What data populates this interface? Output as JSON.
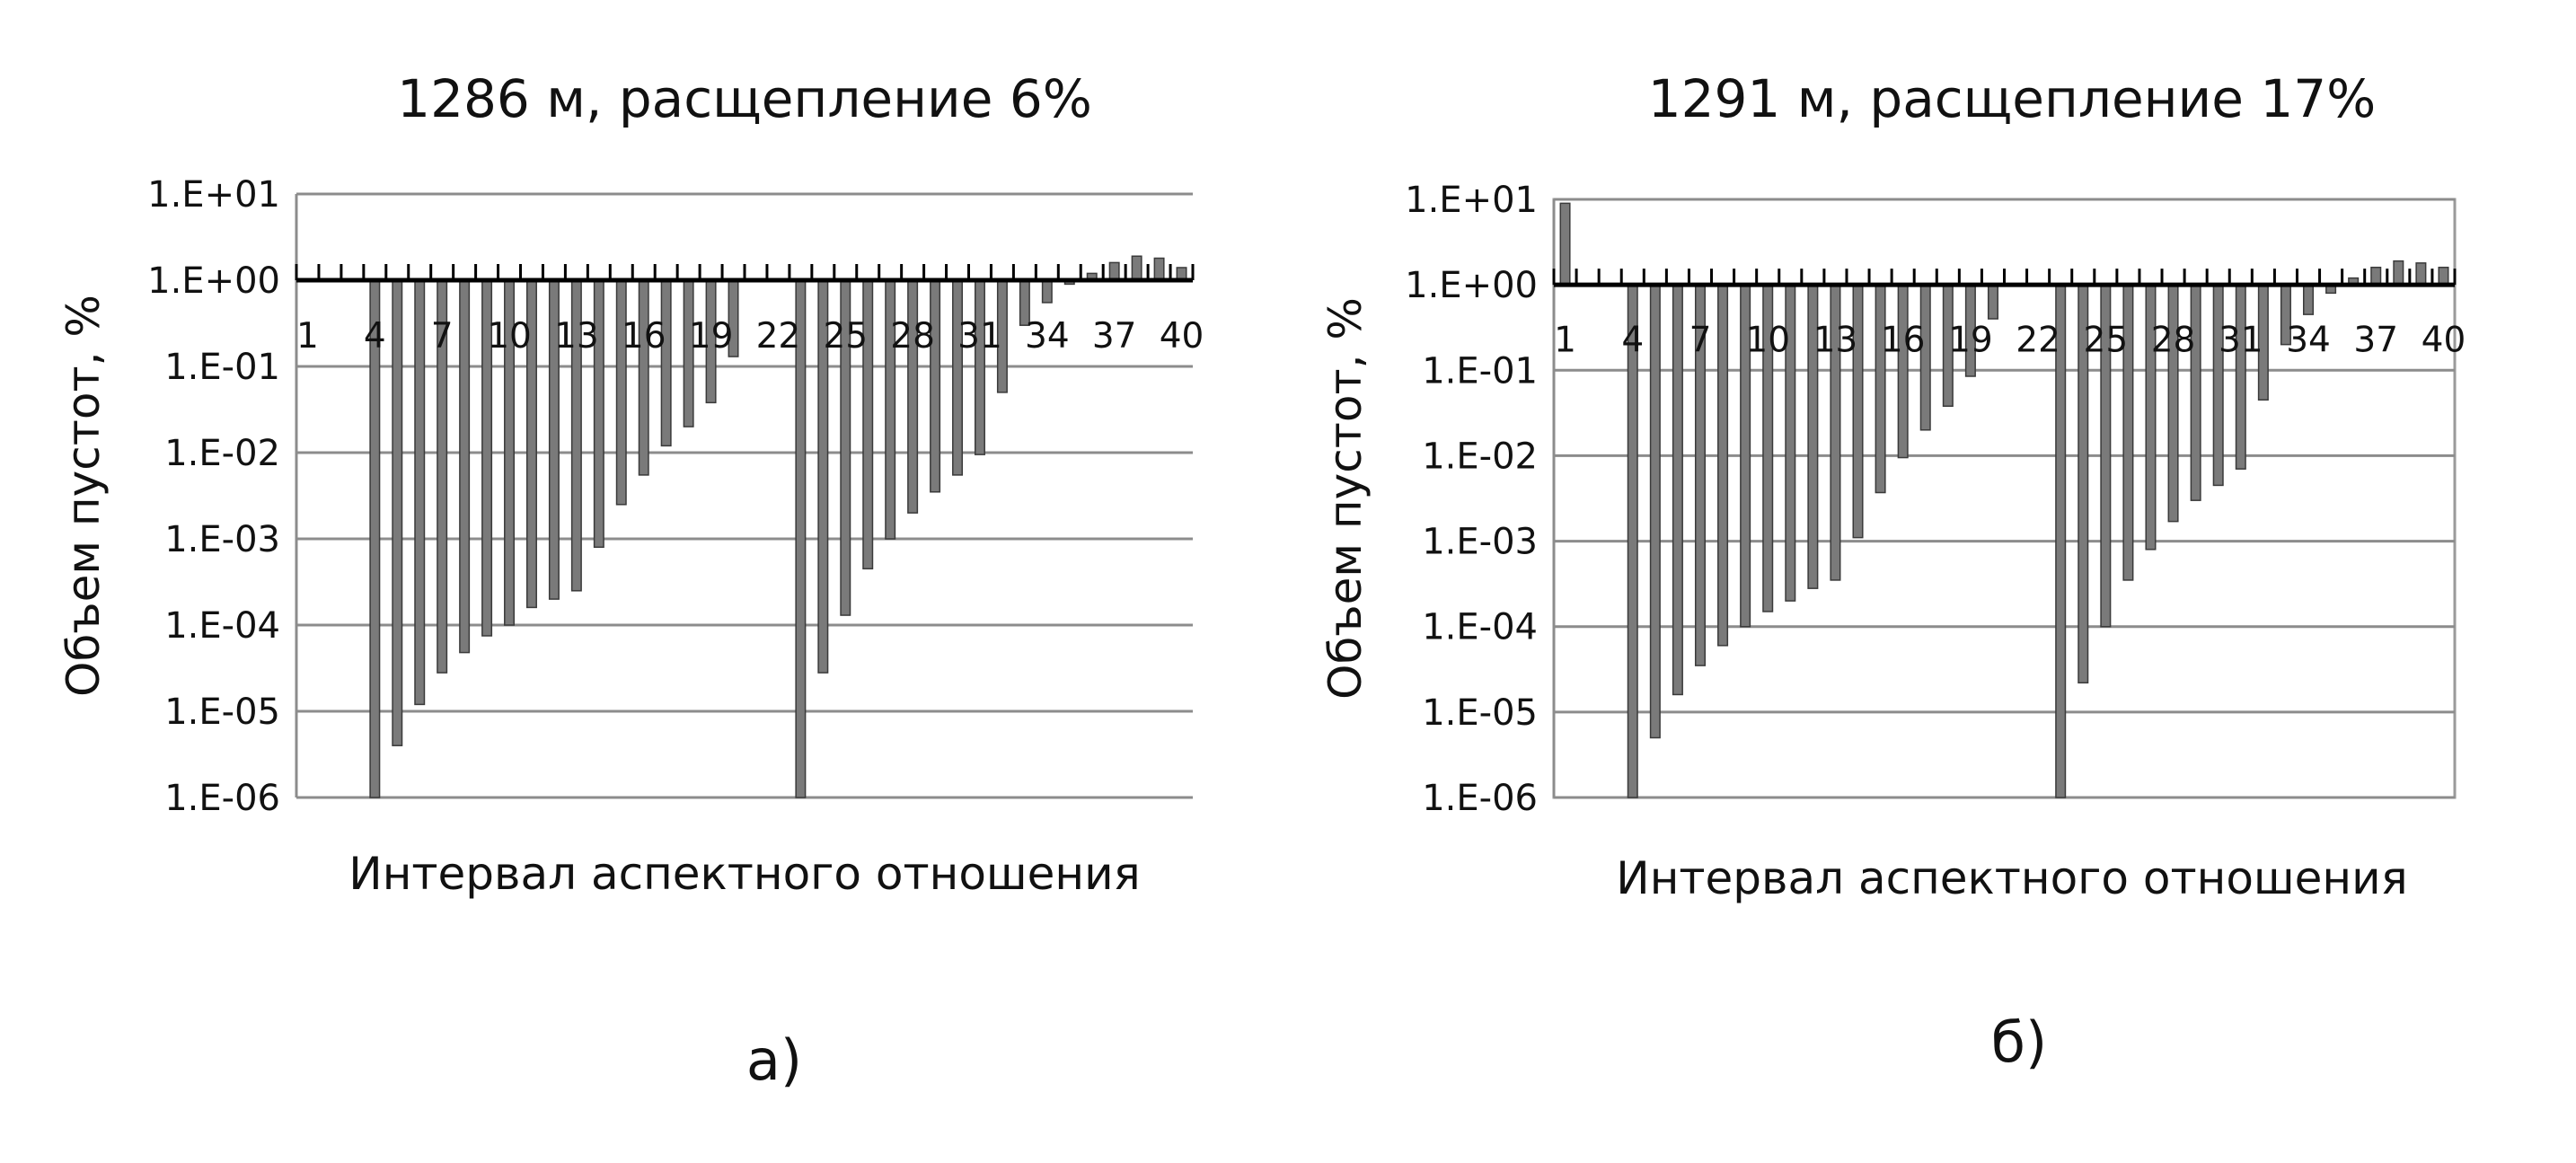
{
  "charts": [
    {
      "panel_label": "а)"
    },
    {
      "panel_label": "б)"
    }
  ],
  "chart_data": [
    {
      "type": "bar",
      "title": "1286 м, расщепление 6%",
      "xlabel": "Интервал аспектного отношения",
      "ylabel": "Объем пустот, %",
      "y_scale": "log",
      "ylim": [
        1e-06,
        10
      ],
      "y_ticks": [
        "1.E-06",
        "1.E-05",
        "1.E-04",
        "1.E-03",
        "1.E-02",
        "1.E-01",
        "1.E+00",
        "1.E+01"
      ],
      "grid": true,
      "baseline": 1,
      "categories": [
        "1",
        "2",
        "3",
        "4",
        "5",
        "6",
        "7",
        "8",
        "9",
        "10",
        "11",
        "12",
        "13",
        "14",
        "15",
        "16",
        "17",
        "18",
        "19",
        "20",
        "21",
        "22",
        "23",
        "24",
        "25",
        "26",
        "27",
        "28",
        "29",
        "30",
        "31",
        "32",
        "33",
        "34",
        "35",
        "36",
        "37",
        "38",
        "39",
        "40"
      ],
      "category_labels_shown": [
        "1",
        "4",
        "7",
        "10",
        "13",
        "16",
        "19",
        "22",
        "25",
        "28",
        "31",
        "34",
        "37",
        "40"
      ],
      "values": [
        1,
        1,
        1,
        1e-06,
        4e-06,
        1.2e-05,
        2.8e-05,
        4.8e-05,
        7.5e-05,
        0.0001,
        0.00016,
        0.0002,
        0.00025,
        0.0008,
        0.0025,
        0.0055,
        0.012,
        0.02,
        0.038,
        0.13,
        1,
        1,
        1e-06,
        2.8e-05,
        0.00013,
        0.00045,
        0.001,
        0.002,
        0.0035,
        0.0055,
        0.0095,
        0.05,
        0.3,
        0.55,
        0.9,
        1.2,
        1.6,
        1.9,
        1.8,
        1.4
      ]
    },
    {
      "type": "bar",
      "title": "1291 м, расщепление 17%",
      "xlabel": "Интервал аспектного отношения",
      "ylabel": "Объем пустот, %",
      "y_scale": "log",
      "ylim": [
        1e-06,
        10
      ],
      "y_ticks": [
        "1.E-06",
        "1.E-05",
        "1.E-04",
        "1.E-03",
        "1.E-02",
        "1.E-01",
        "1.E+00",
        "1.E+01"
      ],
      "grid": true,
      "baseline": 1,
      "categories": [
        "1",
        "2",
        "3",
        "4",
        "5",
        "6",
        "7",
        "8",
        "9",
        "10",
        "11",
        "12",
        "13",
        "14",
        "15",
        "16",
        "17",
        "18",
        "19",
        "20",
        "21",
        "22",
        "23",
        "24",
        "25",
        "26",
        "27",
        "28",
        "29",
        "30",
        "31",
        "32",
        "33",
        "34",
        "35",
        "36",
        "37",
        "38",
        "39",
        "40"
      ],
      "category_labels_shown": [
        "1",
        "4",
        "7",
        "10",
        "13",
        "16",
        "19",
        "22",
        "25",
        "28",
        "31",
        "34",
        "37",
        "40"
      ],
      "values": [
        9,
        1,
        1,
        1e-06,
        5e-06,
        1.6e-05,
        3.5e-05,
        6e-05,
        0.0001,
        0.00015,
        0.0002,
        0.00028,
        0.00035,
        0.0011,
        0.0037,
        0.0095,
        0.02,
        0.038,
        0.085,
        0.4,
        1,
        1,
        1e-06,
        2.2e-05,
        0.0001,
        0.00035,
        0.0008,
        0.0017,
        0.003,
        0.0045,
        0.007,
        0.045,
        0.2,
        0.45,
        0.8,
        1.2,
        1.6,
        1.9,
        1.8,
        1.6
      ]
    }
  ]
}
